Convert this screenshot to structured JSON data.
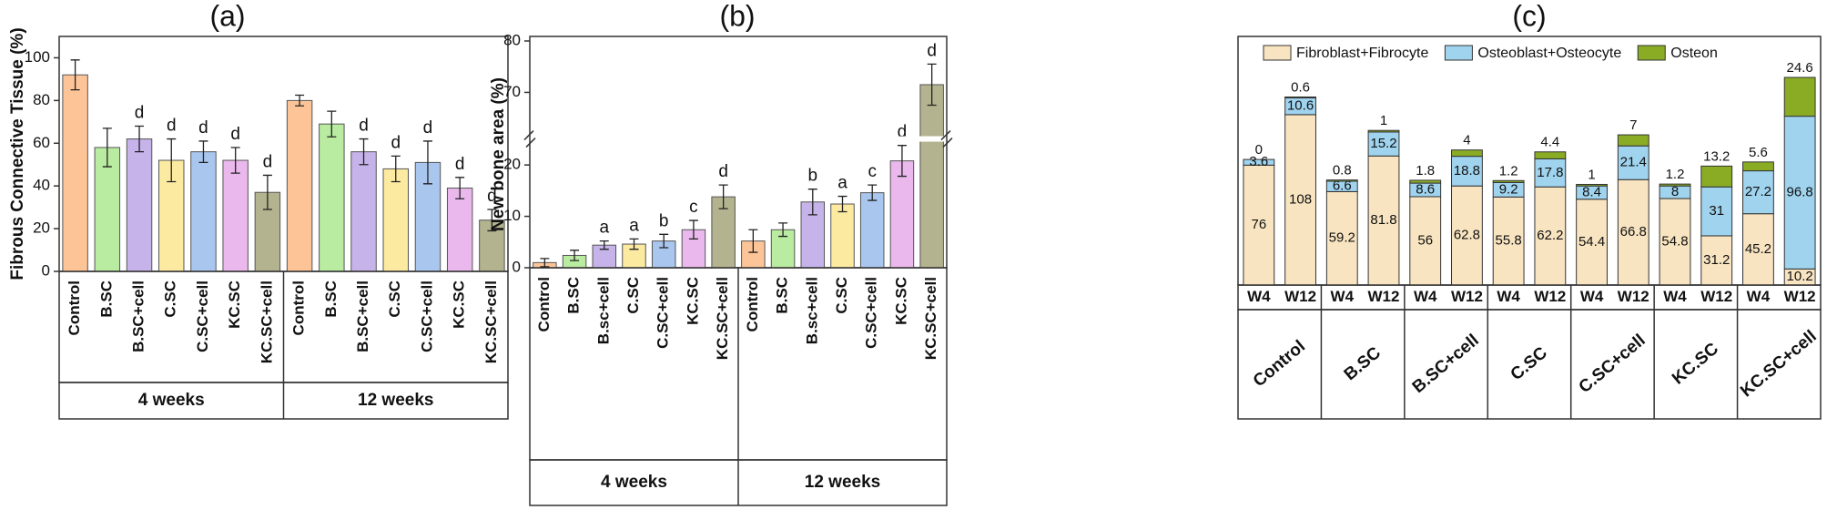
{
  "chart_data": [
    {
      "type": "bar",
      "title": "(a)",
      "y_label": "Fibrous Connective Tissue (%)",
      "categories": [
        "Control",
        "B.SC",
        "B.SC+cell",
        "C.SC",
        "C.SC+cell",
        "KC.SC",
        "KC.SC+cell",
        "Control",
        "B.SC",
        "B.SC+cell",
        "C.SC",
        "C.SC+cell",
        "KC.SC",
        "KC.SC+cell"
      ],
      "groups": [
        "4 weeks",
        "12 weeks"
      ],
      "values": [
        92,
        58,
        62,
        52,
        56,
        52,
        37,
        80,
        69,
        56,
        48,
        51,
        39,
        24
      ],
      "errors": [
        7,
        9,
        6,
        10,
        5,
        6,
        8,
        2.5,
        6,
        6,
        6,
        10,
        5,
        5
      ],
      "annotations": [
        null,
        null,
        "d",
        "d",
        "d",
        "d",
        "d",
        null,
        null,
        "d",
        "d",
        "d",
        "d",
        "d"
      ],
      "colors": [
        "#fdc597",
        "#b9eba0",
        "#c6b3ea",
        "#fbeaa0",
        "#a9c6ee",
        "#eab8ec",
        "#b3b38f",
        "#fdc597",
        "#b9eba0",
        "#c6b3ea",
        "#fbeaa0",
        "#a9c6ee",
        "#eab8ec",
        "#b3b38f"
      ],
      "ylim": [
        0,
        110
      ],
      "yticks": [
        0,
        20,
        40,
        60,
        80,
        100
      ]
    },
    {
      "type": "bar",
      "title": "(b)",
      "y_label": "New bone area (%)",
      "categories": [
        "Control",
        "B.SC",
        "B.sc+cell",
        "C.SC",
        "C.SC+cell",
        "KC.SC",
        "KC.SC+cell",
        "Control",
        "B.SC",
        "B.sc+cell",
        "C.SC",
        "C.SC+cell",
        "KC.SC",
        "KC.SC+cell"
      ],
      "groups": [
        "4 weeks",
        "12 weeks"
      ],
      "values": [
        1,
        2.4,
        4.4,
        4.6,
        5.2,
        7.4,
        13.8,
        5.2,
        7.4,
        12.8,
        12.4,
        14.6,
        20.8,
        71.5
      ],
      "errors": [
        0.8,
        1,
        0.8,
        1,
        1.3,
        1.8,
        2.3,
        2.2,
        1.3,
        2.5,
        1.5,
        1.5,
        3,
        4
      ],
      "annotations": [
        null,
        null,
        "a",
        "a",
        "b",
        "c",
        "d",
        null,
        null,
        "b",
        "a",
        "c",
        "d",
        "d"
      ],
      "colors": [
        "#fdc597",
        "#b9eba0",
        "#c6b3ea",
        "#fbeaa0",
        "#a9c6ee",
        "#eab8ec",
        "#b3b38f",
        "#fdc597",
        "#b9eba0",
        "#c6b3ea",
        "#fbeaa0",
        "#a9c6ee",
        "#eab8ec",
        "#b3b38f"
      ],
      "ylim": [
        0,
        80
      ],
      "ybreak": [
        24,
        62
      ],
      "yticks": [
        0,
        10,
        20,
        70,
        80
      ]
    },
    {
      "type": "stacked_bar",
      "title": "(c)",
      "categories": [
        "W4",
        "W12",
        "W4",
        "W12",
        "W4",
        "W12",
        "W4",
        "W12",
        "W4",
        "W12",
        "W4",
        "W12",
        "W4",
        "W12"
      ],
      "groups": [
        "Control",
        "B.SC",
        "B.SC+cell",
        "C.SC",
        "C.SC+cell",
        "KC.SC",
        "KC.SC+cell"
      ],
      "series": [
        {
          "name": "Fibroblast+Fibrocyte",
          "color": "#f8e4c0",
          "values": [
            76,
            108,
            59.2,
            81.8,
            56,
            62.8,
            55.8,
            62.2,
            54.4,
            66.8,
            54.8,
            31.2,
            45.2,
            10.2
          ]
        },
        {
          "name": "Osteoblast+Osteocyte",
          "color": "#9fd3ee",
          "values": [
            3.6,
            10.6,
            6.6,
            15.2,
            8.6,
            18.8,
            9.2,
            17.8,
            8.4,
            21.4,
            8,
            31,
            27.2,
            96.8
          ]
        },
        {
          "name": "Osteon",
          "color": "#8aac25",
          "values": [
            0,
            0.6,
            0.8,
            1,
            1.8,
            4,
            1.2,
            4.4,
            1,
            7,
            1.2,
            13.2,
            5.6,
            24.6
          ]
        }
      ]
    }
  ]
}
